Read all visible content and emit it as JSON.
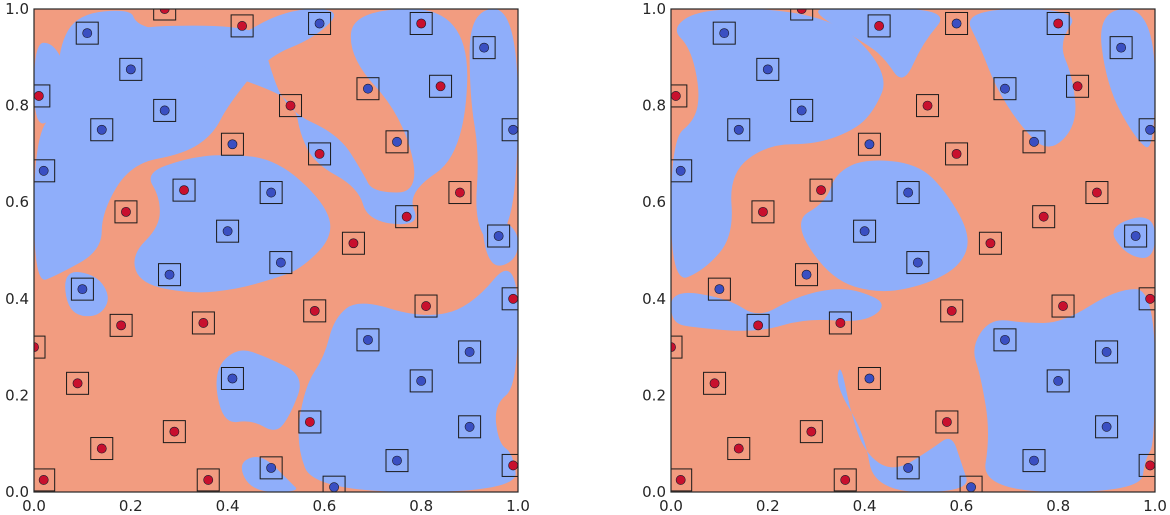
{
  "colors": {
    "region_red": "#F29C80",
    "region_blue": "#8FAEFA",
    "point_red": "#C8102E",
    "point_blue": "#3A4FC2",
    "frame": "#262626"
  },
  "chart_data": [
    {
      "type": "scatter",
      "title": "",
      "xlabel": "",
      "ylabel": "",
      "xlim": [
        0,
        1
      ],
      "ylim": [
        0,
        1
      ],
      "xticks": [
        "0.0",
        "0.2",
        "0.4",
        "0.6",
        "0.8",
        "1.0"
      ],
      "yticks": [
        "0.0",
        "0.2",
        "0.4",
        "0.6",
        "0.8",
        "1.0"
      ],
      "grid": false,
      "background": "decision regions (red / blue)",
      "marker": "point inside square",
      "red_points": [
        [
          0.27,
          1.0
        ],
        [
          0.43,
          0.965
        ],
        [
          0.8,
          0.97
        ],
        [
          0.01,
          0.82
        ],
        [
          0.53,
          0.8
        ],
        [
          0.84,
          0.84
        ],
        [
          0.59,
          0.7
        ],
        [
          0.31,
          0.625
        ],
        [
          0.19,
          0.58
        ],
        [
          0.77,
          0.57
        ],
        [
          0.88,
          0.62
        ],
        [
          0.66,
          0.515
        ],
        [
          0.18,
          0.345
        ],
        [
          0.35,
          0.35
        ],
        [
          0.58,
          0.375
        ],
        [
          0.81,
          0.385
        ],
        [
          0.99,
          0.4
        ],
        [
          0.0,
          0.3
        ],
        [
          0.09,
          0.225
        ],
        [
          0.29,
          0.125
        ],
        [
          0.14,
          0.09
        ],
        [
          0.57,
          0.145
        ],
        [
          0.02,
          0.025
        ],
        [
          0.36,
          0.025
        ],
        [
          0.99,
          0.055
        ]
      ],
      "blue_points": [
        [
          0.11,
          0.95
        ],
        [
          0.59,
          0.97
        ],
        [
          0.93,
          0.92
        ],
        [
          0.2,
          0.875
        ],
        [
          0.69,
          0.835
        ],
        [
          0.27,
          0.79
        ],
        [
          0.14,
          0.75
        ],
        [
          0.41,
          0.72
        ],
        [
          0.75,
          0.725
        ],
        [
          0.99,
          0.75
        ],
        [
          0.02,
          0.665
        ],
        [
          0.49,
          0.62
        ],
        [
          0.4,
          0.54
        ],
        [
          0.51,
          0.475
        ],
        [
          0.96,
          0.53
        ],
        [
          0.28,
          0.45
        ],
        [
          0.1,
          0.42
        ],
        [
          0.69,
          0.315
        ],
        [
          0.41,
          0.235
        ],
        [
          0.8,
          0.23
        ],
        [
          0.9,
          0.29
        ],
        [
          0.9,
          0.135
        ],
        [
          0.49,
          0.05
        ],
        [
          0.75,
          0.065
        ],
        [
          0.62,
          0.01
        ]
      ]
    },
    {
      "type": "scatter",
      "title": "",
      "xlabel": "",
      "ylabel": "",
      "xlim": [
        0,
        1
      ],
      "ylim": [
        0,
        1
      ],
      "xticks": [
        "0.0",
        "0.2",
        "0.4",
        "0.6",
        "0.8",
        "1.0"
      ],
      "yticks": [
        "0.0",
        "0.2",
        "0.4",
        "0.6",
        "0.8",
        "1.0"
      ],
      "grid": false,
      "background": "decision regions (red / blue)",
      "marker": "point inside square",
      "red_points": [
        [
          0.27,
          1.0
        ],
        [
          0.43,
          0.965
        ],
        [
          0.8,
          0.97
        ],
        [
          0.01,
          0.82
        ],
        [
          0.53,
          0.8
        ],
        [
          0.84,
          0.84
        ],
        [
          0.59,
          0.7
        ],
        [
          0.31,
          0.625
        ],
        [
          0.19,
          0.58
        ],
        [
          0.77,
          0.57
        ],
        [
          0.88,
          0.62
        ],
        [
          0.66,
          0.515
        ],
        [
          0.18,
          0.345
        ],
        [
          0.35,
          0.35
        ],
        [
          0.58,
          0.375
        ],
        [
          0.81,
          0.385
        ],
        [
          0.99,
          0.4
        ],
        [
          0.0,
          0.3
        ],
        [
          0.09,
          0.225
        ],
        [
          0.29,
          0.125
        ],
        [
          0.14,
          0.09
        ],
        [
          0.57,
          0.145
        ],
        [
          0.02,
          0.025
        ],
        [
          0.36,
          0.025
        ],
        [
          0.99,
          0.055
        ]
      ],
      "blue_points": [
        [
          0.11,
          0.95
        ],
        [
          0.59,
          0.97
        ],
        [
          0.93,
          0.92
        ],
        [
          0.2,
          0.875
        ],
        [
          0.69,
          0.835
        ],
        [
          0.27,
          0.79
        ],
        [
          0.14,
          0.75
        ],
        [
          0.41,
          0.72
        ],
        [
          0.75,
          0.725
        ],
        [
          0.99,
          0.75
        ],
        [
          0.02,
          0.665
        ],
        [
          0.49,
          0.62
        ],
        [
          0.4,
          0.54
        ],
        [
          0.51,
          0.475
        ],
        [
          0.96,
          0.53
        ],
        [
          0.28,
          0.45
        ],
        [
          0.1,
          0.42
        ],
        [
          0.69,
          0.315
        ],
        [
          0.41,
          0.235
        ],
        [
          0.8,
          0.23
        ],
        [
          0.9,
          0.29
        ],
        [
          0.9,
          0.135
        ],
        [
          0.49,
          0.05
        ],
        [
          0.75,
          0.065
        ],
        [
          0.62,
          0.01
        ]
      ]
    }
  ]
}
